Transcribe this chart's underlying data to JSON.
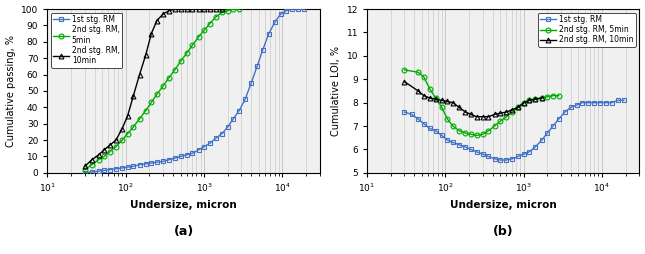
{
  "a_xlabel": "Undersize, micron",
  "b_xlabel": "Undersize, micron",
  "a_ylabel": "Cumulative passing, %",
  "b_ylabel": "Cumulative LOI, %",
  "a_label": "(a)",
  "b_label": "(b)",
  "psd_1st_x": [
    30,
    37,
    45,
    53,
    63,
    75,
    90,
    106,
    125,
    150,
    180,
    212,
    250,
    300,
    355,
    425,
    500,
    600,
    710,
    850,
    1000,
    1180,
    1400,
    1700,
    2000,
    2360,
    2800,
    3350,
    4000,
    4750,
    5600,
    6700,
    8000,
    9500,
    11200,
    13200,
    16000,
    19000
  ],
  "psd_1st_y": [
    0,
    0.5,
    1,
    1.5,
    2,
    2.5,
    3,
    3.5,
    4,
    5,
    5.5,
    6,
    6.5,
    7,
    8,
    9,
    10,
    11,
    12,
    14,
    16,
    18,
    21,
    24,
    28,
    33,
    38,
    45,
    55,
    65,
    75,
    85,
    92,
    97,
    99,
    100,
    100,
    100
  ],
  "psd_2nd5_x": [
    30,
    37,
    45,
    53,
    63,
    75,
    90,
    106,
    125,
    150,
    180,
    212,
    250,
    300,
    355,
    425,
    500,
    600,
    710,
    850,
    1000,
    1180,
    1400,
    1700,
    2000,
    2360,
    2800
  ],
  "psd_2nd5_y": [
    2,
    5,
    8,
    10,
    13,
    16,
    20,
    24,
    28,
    33,
    38,
    43,
    48,
    53,
    58,
    63,
    68,
    73,
    78,
    83,
    87,
    91,
    95,
    98,
    99,
    100,
    100
  ],
  "psd_2nd10_x": [
    30,
    37,
    45,
    53,
    63,
    75,
    90,
    106,
    125,
    150,
    180,
    212,
    250,
    300,
    355,
    425,
    500,
    600,
    710,
    850,
    1000,
    1180,
    1400,
    1700
  ],
  "psd_2nd10_y": [
    4,
    8,
    11,
    14,
    17,
    20,
    27,
    35,
    47,
    60,
    72,
    85,
    93,
    97,
    99,
    100,
    100,
    100,
    100,
    100,
    100,
    100,
    100,
    100
  ],
  "loi_1st_x": [
    30,
    37,
    45,
    53,
    63,
    75,
    90,
    106,
    125,
    150,
    180,
    212,
    250,
    300,
    355,
    425,
    500,
    600,
    710,
    850,
    1000,
    1180,
    1400,
    1700,
    2000,
    2360,
    2800,
    3350,
    4000,
    4750,
    5600,
    6700,
    8000,
    9500,
    11200,
    13200,
    16000,
    19000
  ],
  "loi_1st_y": [
    7.6,
    7.5,
    7.3,
    7.1,
    6.9,
    6.8,
    6.6,
    6.4,
    6.3,
    6.2,
    6.1,
    6.0,
    5.9,
    5.8,
    5.7,
    5.6,
    5.55,
    5.55,
    5.6,
    5.7,
    5.8,
    5.9,
    6.1,
    6.4,
    6.7,
    7.0,
    7.3,
    7.6,
    7.8,
    7.9,
    8.0,
    8.0,
    8.0,
    8.0,
    8.0,
    8.0,
    8.1,
    8.1
  ],
  "loi_2nd5_x": [
    30,
    45,
    53,
    63,
    75,
    90,
    106,
    125,
    150,
    180,
    212,
    250,
    300,
    355,
    425,
    500,
    600,
    710,
    850,
    1000,
    1180,
    1400,
    1700,
    2000,
    2360,
    2800
  ],
  "loi_2nd5_y": [
    9.4,
    9.3,
    9.1,
    8.6,
    8.2,
    7.8,
    7.3,
    7.0,
    6.8,
    6.7,
    6.65,
    6.6,
    6.65,
    6.8,
    7.0,
    7.2,
    7.4,
    7.6,
    7.8,
    8.0,
    8.1,
    8.15,
    8.2,
    8.25,
    8.3,
    8.3
  ],
  "loi_2nd10_x": [
    30,
    45,
    53,
    63,
    75,
    90,
    106,
    125,
    150,
    180,
    212,
    250,
    300,
    355,
    425,
    500,
    600,
    710,
    850,
    1000,
    1180,
    1400,
    1700
  ],
  "loi_2nd10_y": [
    8.9,
    8.5,
    8.3,
    8.2,
    8.15,
    8.1,
    8.05,
    8.0,
    7.8,
    7.6,
    7.5,
    7.4,
    7.4,
    7.4,
    7.5,
    7.55,
    7.6,
    7.7,
    7.8,
    8.0,
    8.1,
    8.15,
    8.2
  ],
  "color_1st": "#4472c4",
  "color_2nd5": "#00aa00",
  "color_2nd10": "#000000",
  "a_ylim": [
    0,
    100
  ],
  "a_xlim": [
    10,
    30000
  ],
  "b_ylim": [
    5,
    12
  ],
  "b_xlim": [
    10,
    30000
  ],
  "legend_1st": "1st stg. RM",
  "legend_2nd5_a": "2nd stg. RM,\n5min",
  "legend_2nd10_a": "2nd stg. RM,\n10min",
  "legend_2nd5_b": "2nd stg. RM, 5min",
  "legend_2nd10_b": "2nd stg. RM, 10min",
  "bg_color": "#f0f0f0",
  "grid_color": "#c0c0c0",
  "fig_width": 6.45,
  "fig_height": 2.54,
  "dpi": 100
}
